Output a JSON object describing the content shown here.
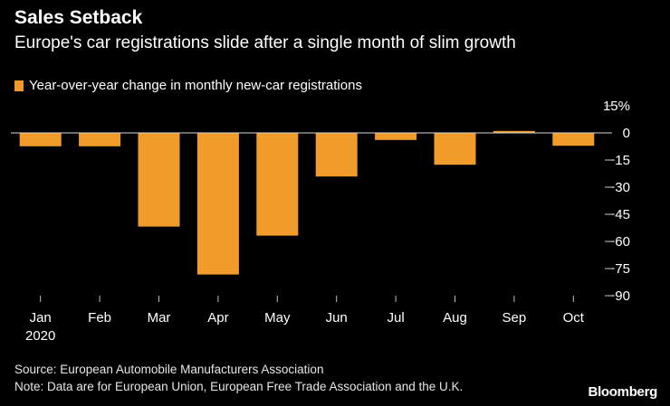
{
  "colors": {
    "bar": "#f09b2a",
    "axis": "#bfbfbf",
    "background": "#000000"
  },
  "chart_data": {
    "type": "bar",
    "title": "Sales Setback",
    "subtitle": "Europe's car registrations slide after a single month of slim growth",
    "legend": [
      "Year-over-year change in monthly new-car registrations"
    ],
    "categories": [
      "Jan",
      "Feb",
      "Mar",
      "Apr",
      "May",
      "Jun",
      "Jul",
      "Aug",
      "Sep",
      "Oct"
    ],
    "x_sublabel": "2020",
    "values": [
      -7.4,
      -7.4,
      -51.8,
      -78.3,
      -56.8,
      -24.1,
      -3.9,
      -17.6,
      1.1,
      -7.1
    ],
    "ylim": [
      -90,
      15
    ],
    "yticks": [
      15,
      0,
      -15,
      -30,
      -45,
      -60,
      -75,
      -90
    ],
    "ytick_labels": [
      "15%",
      "0",
      "−15",
      "−30",
      "−45",
      "−60",
      "−75",
      "−90"
    ],
    "xlabel": "",
    "ylabel": ""
  },
  "footer": {
    "source": "Source: European Automobile Manufacturers Association",
    "note": "Note: Data are for European Union, European Free Trade Association and the U.K."
  },
  "brand": "Bloomberg"
}
